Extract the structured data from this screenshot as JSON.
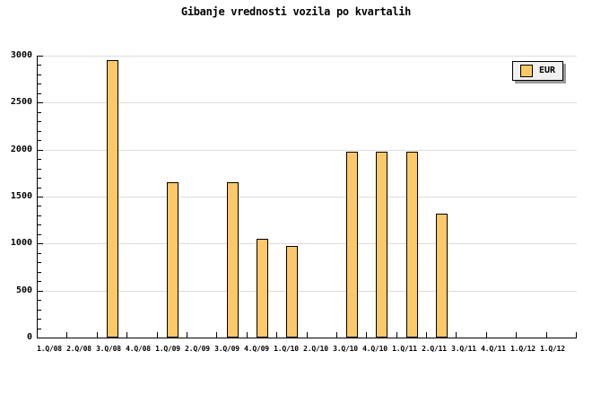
{
  "chart_data": {
    "type": "bar",
    "title": "Gibanje vrednosti vozila po kvartalih",
    "categories": [
      "1.Q/08",
      "2.Q/08",
      "3.Q/08",
      "4.Q/08",
      "1.Q/09",
      "2.Q/09",
      "3.Q/09",
      "4.Q/09",
      "1.Q/10",
      "2.Q/10",
      "3.Q/10",
      "4.Q/10",
      "1.Q/11",
      "2.Q/11",
      "3.Q/11",
      "4.Q/11",
      "1.Q/12",
      "1.Q/12"
    ],
    "series": [
      {
        "name": "EUR",
        "values": [
          null,
          null,
          2950,
          null,
          1650,
          null,
          1650,
          1050,
          975,
          null,
          1980,
          1980,
          1980,
          1320,
          null,
          null,
          null,
          null
        ]
      }
    ],
    "ylim": [
      0,
      3000
    ],
    "ytick_interval": 500,
    "yminor_interval": 100,
    "ytick_labels": [
      "0",
      "500",
      "1000",
      "1500",
      "2000",
      "2500",
      "3000"
    ],
    "grid": "horizontal-major",
    "legend_position": "top-right",
    "colors": {
      "bar_fill": "#FDC868",
      "bar_border": "#000000",
      "gridline": "#DCDCDC",
      "axis": "#000000",
      "legend_bg": "#F0F0F0",
      "legend_shadow": "#9A9A9A",
      "background": "#FFFFFF"
    }
  }
}
